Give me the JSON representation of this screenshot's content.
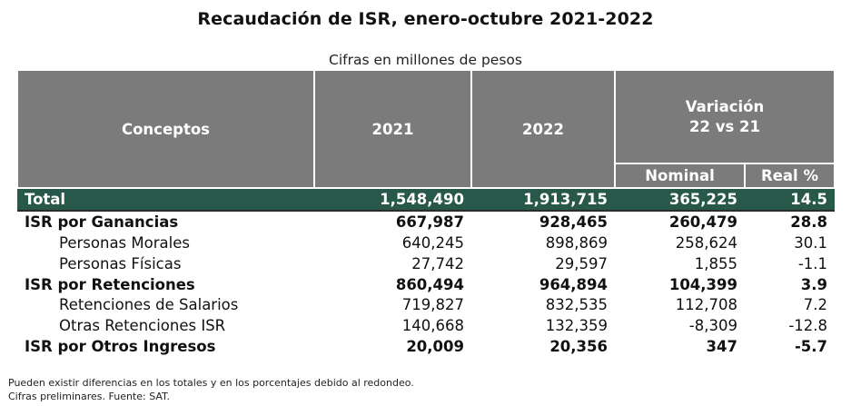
{
  "title": "Recaudación de ISR, enero-octubre 2021-2022",
  "subtitle": "Cifras en millones de pesos",
  "headers": {
    "conceptos": "Conceptos",
    "y2021": "2021",
    "y2022": "2022",
    "variacion_line1": "Variación",
    "variacion_line2": "22 vs 21",
    "nominal": "Nominal",
    "real": "Real %"
  },
  "total": {
    "label": "Total",
    "v2021": "1,548,490",
    "v2022": "1,913,715",
    "nominal": "365,225",
    "real": "14.5"
  },
  "rows": [
    {
      "label": "ISR por Ganancias",
      "v2021": "667,987",
      "v2022": "928,465",
      "nominal": "260,479",
      "real": "28.8"
    },
    {
      "label": "Personas Morales",
      "v2021": "640,245",
      "v2022": "898,869",
      "nominal": "258,624",
      "real": "30.1"
    },
    {
      "label": "Personas Físicas",
      "v2021": "27,742",
      "v2022": "29,597",
      "nominal": "1,855",
      "real": "-1.1"
    },
    {
      "label": "ISR por Retenciones",
      "v2021": "860,494",
      "v2022": "964,894",
      "nominal": "104,399",
      "real": "3.9"
    },
    {
      "label": "Retenciones de Salarios",
      "v2021": "719,827",
      "v2022": "832,535",
      "nominal": "112,708",
      "real": "7.2"
    },
    {
      "label": "Otras Retenciones ISR",
      "v2021": "140,668",
      "v2022": "132,359",
      "nominal": "-8,309",
      "real": "-12.8"
    },
    {
      "label": "ISR por Otros Ingresos",
      "v2021": "20,009",
      "v2022": "20,356",
      "nominal": "347",
      "real": "-5.7"
    }
  ],
  "notes": {
    "line1": "Pueden existir diferencias en los totales y en los porcentajes debido al redondeo.",
    "line2": "Cifras preliminares. Fuente: SAT."
  }
}
